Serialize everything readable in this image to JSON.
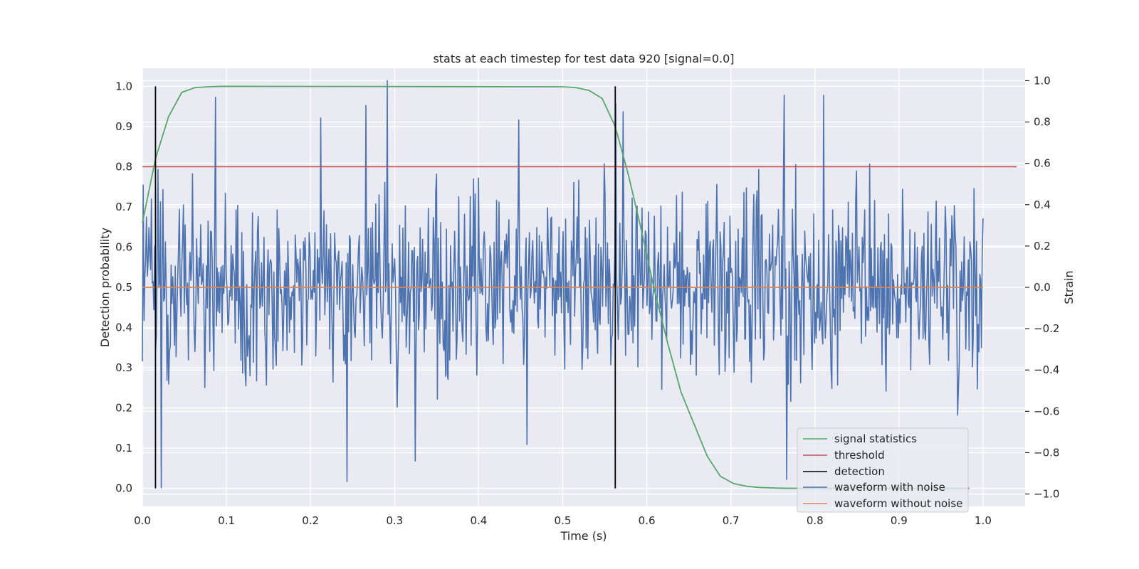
{
  "chart_data": {
    "type": "line",
    "title": "stats at each timestep for test data 920 [signal=0.0]",
    "xlabel": "Time (s)",
    "ylabel": "Detection probability",
    "y2label": "Strain",
    "xlim": [
      0.0,
      1.05
    ],
    "ylim": [
      -0.045,
      1.045
    ],
    "y2lim": [
      -1.06,
      1.06
    ],
    "xticks": [
      "0.0",
      "0.1",
      "0.2",
      "0.3",
      "0.4",
      "0.5",
      "0.6",
      "0.7",
      "0.8",
      "0.9",
      "1.0"
    ],
    "yticks": [
      "0.0",
      "0.1",
      "0.2",
      "0.3",
      "0.4",
      "0.5",
      "0.6",
      "0.7",
      "0.8",
      "0.9",
      "1.0"
    ],
    "y2ticks": [
      "−1.0",
      "−0.8",
      "−0.6",
      "−0.4",
      "−0.2",
      "0.0",
      "0.2",
      "0.4",
      "0.6",
      "0.8",
      "1.0"
    ],
    "grid": true,
    "legend_position": "lower right",
    "series": [
      {
        "name": "signal statistics",
        "axis": "left",
        "color": "#55a868",
        "x": [
          0.0,
          0.0156,
          0.0312,
          0.0469,
          0.0625,
          0.0781,
          0.0938,
          0.1094,
          0.125,
          0.5,
          0.5156,
          0.5312,
          0.5469,
          0.5625,
          0.5781,
          0.5938,
          0.6094,
          0.625,
          0.6406,
          0.6562,
          0.6719,
          0.6875,
          0.7031,
          0.7188,
          0.7344,
          0.75,
          0.7656,
          0.7812,
          0.8,
          0.984
        ],
        "y": [
          0.66,
          0.82,
          0.925,
          0.985,
          0.997,
          0.999,
          1.0,
          1.0,
          1.0,
          0.999,
          0.997,
          0.99,
          0.97,
          0.9,
          0.78,
          0.64,
          0.49,
          0.36,
          0.24,
          0.16,
          0.08,
          0.03,
          0.012,
          0.005,
          0.002,
          0.001,
          0.0,
          0.0,
          0.0,
          0.0
        ]
      },
      {
        "name": "threshold",
        "axis": "left",
        "color": "#c44e52",
        "y": 0.8,
        "x_range": [
          0.0,
          1.04
        ]
      },
      {
        "name": "detection",
        "axis": "left",
        "color": "#000000",
        "x": [
          0.0156,
          0.5625
        ],
        "y_range": [
          0.0,
          1.0
        ]
      },
      {
        "name": "waveform with noise",
        "axis": "right",
        "color": "#4c72b0",
        "x_range": [
          0.0,
          1.0
        ],
        "n_points": 1024,
        "y_range": [
          -0.98,
          1.0
        ],
        "note_peaks": [
          [
            0.005,
            0.34
          ],
          [
            0.022,
            -0.97
          ],
          [
            0.06,
            0.55
          ],
          [
            0.087,
            0.92
          ],
          [
            0.212,
            0.82
          ],
          [
            0.243,
            -0.94
          ],
          [
            0.266,
            0.88
          ],
          [
            0.291,
            1.0
          ],
          [
            0.325,
            -0.84
          ],
          [
            0.448,
            0.81
          ],
          [
            0.457,
            -0.76
          ],
          [
            0.563,
            0.89
          ],
          [
            0.572,
            0.85
          ],
          [
            0.763,
            0.93
          ],
          [
            0.766,
            -0.93
          ],
          [
            0.81,
            0.93
          ]
        ]
      },
      {
        "name": "waveform without noise",
        "axis": "right",
        "color": "#dd8452",
        "x_range": [
          0.0,
          1.0
        ],
        "y": 0.0
      }
    ]
  }
}
